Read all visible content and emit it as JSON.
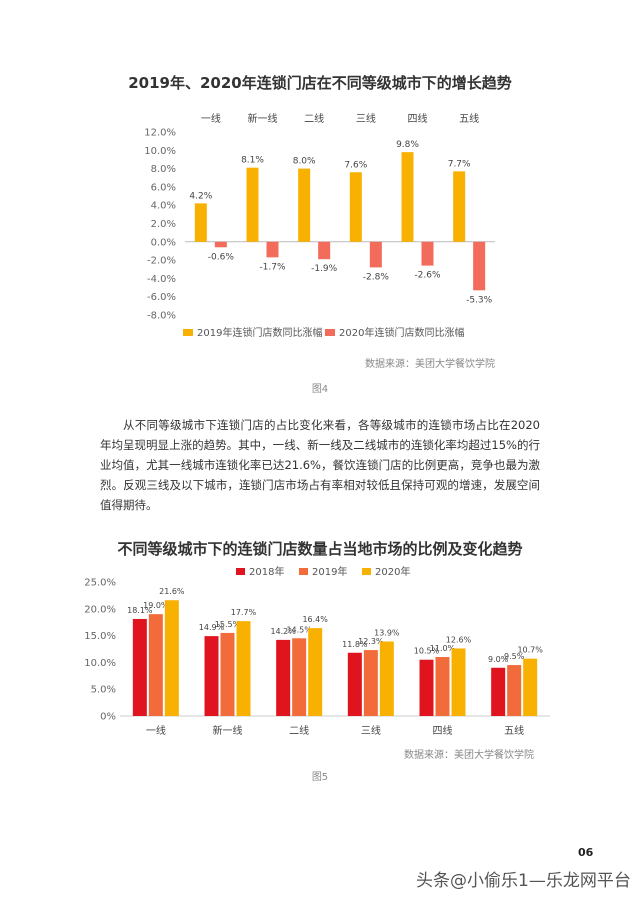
{
  "chart1": {
    "title": "2019年、2020年连锁门店在不同等级城市下的增长趋势",
    "source": "数据来源：美团大学餐饮学院",
    "caption": "图4",
    "colors": {
      "s2019": "#F8B100",
      "s2020": "#F26B5B"
    },
    "chart_data": {
      "type": "bar",
      "title": "2019年、2020年连锁门店在不同等级城市下的增长趋势",
      "categories": [
        "一线",
        "新一线",
        "二线",
        "三线",
        "四线",
        "五线"
      ],
      "series": [
        {
          "name": "2019年连锁门店数同比涨幅",
          "values": [
            4.2,
            8.1,
            8.0,
            7.6,
            9.8,
            7.7
          ],
          "labels": [
            "4.2%",
            "8.1%",
            "8.0%",
            "7.6%",
            "9.8%",
            "7.7%"
          ]
        },
        {
          "name": "2020年连锁门店数同比涨幅",
          "values": [
            -0.6,
            -1.7,
            -1.9,
            -2.8,
            -2.6,
            -5.3
          ],
          "labels": [
            "-0.6%",
            "-1.7%",
            "-1.9%",
            "-2.8%",
            "-2.6%",
            "-5.3%"
          ]
        }
      ],
      "ylim": [
        -8.0,
        12.0
      ],
      "yticks": [
        "12.0%",
        "10.0%",
        "8.0%",
        "6.0%",
        "4.0%",
        "2.0%",
        "0.0%",
        "-2.0%",
        "-4.0%",
        "-6.0%",
        "-8.0%"
      ],
      "legend": "bottom",
      "category_axis": "top",
      "grid": false
    }
  },
  "paragraph": "从不同等级城市下连锁门店的占比变化来看，各等级城市的连锁市场占比在2020年均呈现明显上涨的趋势。其中，一线、新一线及二线城市的连锁化率均超过15%的行业均值，尤其一线城市连锁化率已达21.6%，餐饮连锁门店的比例更高，竞争也最为激烈。反观三线及以下城市，连锁门店市场占有率相对较低且保持可观的增速，发展空间值得期待。",
  "chart2": {
    "title": "不同等级城市下的连锁门店数量占当地市场的比例及变化趋势",
    "source": "数据来源：美团大学餐饮学院",
    "caption": "图5",
    "colors": {
      "s2018": "#E0141E",
      "s2019": "#F26B3A",
      "s2020": "#F8B100"
    },
    "chart_data": {
      "type": "bar",
      "title": "不同等级城市下的连锁门店数量占当地市场的比例及变化趋势",
      "categories": [
        "一线",
        "新一线",
        "二线",
        "三线",
        "四线",
        "五线"
      ],
      "series": [
        {
          "name": "2018年",
          "values": [
            18.1,
            14.9,
            14.2,
            11.8,
            10.5,
            9.0
          ],
          "labels": [
            "18.1%",
            "14.9%",
            "14.2%",
            "11.8%",
            "10.5%",
            "9.0%"
          ]
        },
        {
          "name": "2019年",
          "values": [
            19.0,
            15.5,
            14.5,
            12.3,
            11.0,
            9.5
          ],
          "labels": [
            "19.0%",
            "15.5%",
            "14.5%",
            "12.3%",
            "11.0%",
            "9.5%"
          ]
        },
        {
          "name": "2020年",
          "values": [
            21.6,
            17.7,
            16.4,
            13.9,
            12.6,
            10.7
          ],
          "labels": [
            "21.6%",
            "17.7%",
            "16.4%",
            "13.9%",
            "12.6%",
            "10.7%"
          ]
        }
      ],
      "ylim": [
        0,
        25.0
      ],
      "yticks": [
        "25.0%",
        "20.0%",
        "15.0%",
        "10.0%",
        "5.0%",
        "0%"
      ],
      "legend": "top",
      "grid": false
    }
  },
  "page_number": "06",
  "watermark": "头条@小偷乐1—乐龙网平台"
}
